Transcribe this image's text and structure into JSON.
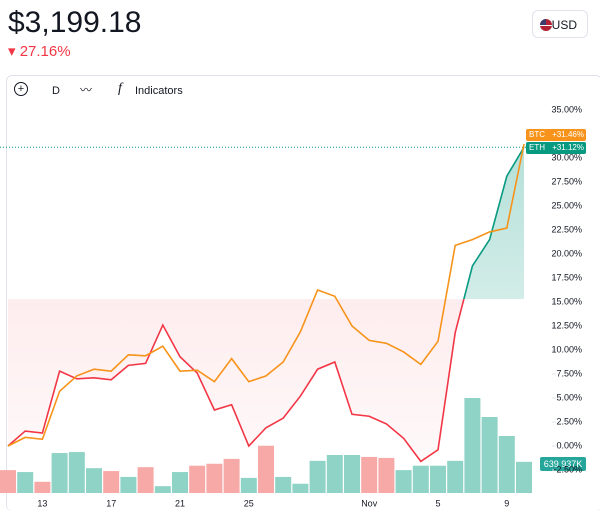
{
  "header": {
    "price": "$3,199.18",
    "change": "27.16%",
    "currency": "USD"
  },
  "toolbar": {
    "interval": "D",
    "indicators": "Indicators"
  },
  "chart_data": {
    "type": "line",
    "categories": [
      null,
      null,
      "13",
      null,
      null,
      null,
      "17",
      null,
      null,
      null,
      "21",
      null,
      null,
      null,
      "25",
      null,
      null,
      null,
      null,
      null,
      null,
      "Nov",
      null,
      null,
      null,
      "5",
      null,
      null,
      null,
      "9",
      null
    ],
    "series": [
      {
        "name": "ETH",
        "color": "#f23645",
        "values": [
          0,
          1.56,
          1.35,
          7.8,
          7.0,
          7.1,
          6.9,
          8.4,
          8.6,
          12.6,
          9.3,
          7.6,
          3.75,
          4.3,
          0,
          1.9,
          2.9,
          5.2,
          8.0,
          8.75,
          3.3,
          3.1,
          2.3,
          0.8,
          -1.6,
          -0.4,
          11.8,
          18.75,
          21.5,
          28.1,
          31.12
        ],
        "value_labels": [
          null,
          null,
          null,
          null,
          null,
          null,
          null,
          null,
          null,
          null,
          null,
          null,
          null,
          null,
          null,
          null,
          null,
          null,
          null,
          null,
          null,
          null,
          null,
          null,
          null,
          null,
          null,
          null,
          null,
          null,
          "+31.12%"
        ],
        "label_color": "#089981"
      },
      {
        "name": "BTC",
        "color": "#f7931a",
        "values": [
          0,
          0.9,
          0.7,
          5.7,
          7.3,
          8.0,
          7.8,
          9.5,
          9.4,
          10.4,
          7.8,
          7.9,
          6.7,
          9.1,
          6.7,
          7.3,
          8.75,
          11.9,
          16.25,
          15.6,
          12.5,
          11.0,
          10.7,
          9.8,
          8.5,
          10.9,
          20.9,
          21.5,
          22.3,
          22.7,
          31.46
        ],
        "value_labels": [
          null,
          null,
          null,
          null,
          null,
          null,
          null,
          null,
          null,
          null,
          null,
          null,
          null,
          null,
          null,
          null,
          null,
          null,
          null,
          null,
          null,
          null,
          null,
          null,
          null,
          null,
          null,
          null,
          null,
          null,
          "+31.46%"
        ],
        "label_color": "#f7931a"
      }
    ],
    "baseline": 15.3,
    "volume": {
      "values": [
        470,
        430,
        230,
        820,
        840,
        510,
        450,
        330,
        530,
        140,
        430,
        560,
        600,
        700,
        310,
        970,
        330,
        190,
        660,
        780,
        780,
        740,
        720,
        470,
        560,
        560,
        660,
        1950,
        1560,
        1170,
        639.937
      ],
      "value_labels": [
        null,
        null,
        null,
        null,
        null,
        null,
        null,
        null,
        null,
        null,
        null,
        null,
        null,
        null,
        null,
        null,
        null,
        null,
        null,
        null,
        null,
        null,
        null,
        null,
        null,
        null,
        null,
        null,
        null,
        null,
        "639.937K"
      ],
      "colors": [
        "#f7a9a7",
        "#8fd3c6",
        "#f7a9a7",
        "#8fd3c6",
        "#8fd3c6",
        "#8fd3c6",
        "#f7a9a7",
        "#8fd3c6",
        "#f7a9a7",
        "#8fd3c6",
        "#8fd3c6",
        "#f7a9a7",
        "#f7a9a7",
        "#f7a9a7",
        "#8fd3c6",
        "#f7a9a7",
        "#8fd3c6",
        "#8fd3c6",
        "#8fd3c6",
        "#8fd3c6",
        "#8fd3c6",
        "#f7a9a7",
        "#f7a9a7",
        "#8fd3c6",
        "#8fd3c6",
        "#8fd3c6",
        "#8fd3c6",
        "#8fd3c6",
        "#8fd3c6",
        "#8fd3c6",
        "#8fd3c6"
      ]
    },
    "ylim": [
      -5,
      36
    ],
    "yticks": [
      {
        "value": -2.5,
        "label": "-2.50%"
      },
      {
        "value": 0,
        "label": "0.00%"
      },
      {
        "value": 2.5,
        "label": "2.50%"
      },
      {
        "value": 5,
        "label": "5.00%"
      },
      {
        "value": 7.5,
        "label": "7.50%"
      },
      {
        "value": 10,
        "label": "10.00%"
      },
      {
        "value": 12.5,
        "label": "12.50%"
      },
      {
        "value": 15,
        "label": "15.00%"
      },
      {
        "value": 17.5,
        "label": "17.50%"
      },
      {
        "value": 20,
        "label": "20.00%"
      },
      {
        "value": 22.5,
        "label": "22.50%"
      },
      {
        "value": 25,
        "label": "25.00%"
      },
      {
        "value": 27.5,
        "label": "27.50%"
      },
      {
        "value": 30,
        "label": "30.00%"
      },
      {
        "value": 32.5,
        "label": "32.50%"
      },
      {
        "value": 35,
        "label": "35.00%"
      }
    ]
  }
}
